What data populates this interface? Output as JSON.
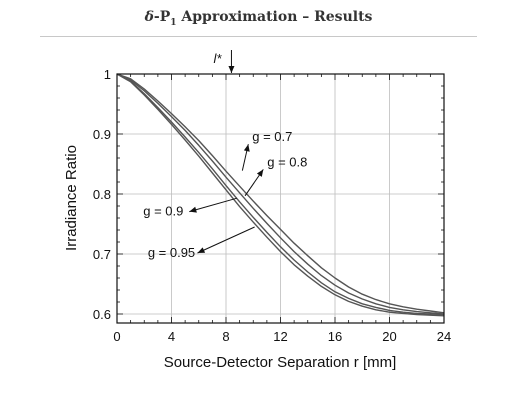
{
  "slide": {
    "title_symbol": "δ",
    "title_p": "-P",
    "title_sub": "1",
    "title_rest": " Approximation – Results"
  },
  "chart_data": {
    "type": "line",
    "title": "",
    "xlabel": "Source-Detector Separation r [mm]",
    "ylabel": "Irradiance Ratio",
    "xlim": [
      0,
      24
    ],
    "ylim": [
      0.585,
      1.0
    ],
    "x_ticks": [
      0,
      4,
      8,
      12,
      16,
      20,
      24
    ],
    "y_ticks": [
      0.6,
      0.7,
      0.8,
      0.9,
      1
    ],
    "x_tick_labels": [
      "0",
      "4",
      "8",
      "12",
      "16",
      "20",
      "24"
    ],
    "y_tick_labels": [
      "0.6",
      "0.7",
      "0.8",
      "0.9",
      "1"
    ],
    "grid": true,
    "marker": {
      "label": "l*",
      "x": 8.4
    },
    "series": [
      {
        "name": "g = 0.7",
        "x": [
          0,
          1,
          2,
          3,
          4,
          5,
          6,
          7,
          8,
          9,
          10,
          11,
          12,
          13,
          14,
          15,
          16,
          17,
          18,
          19,
          20,
          21,
          22,
          23,
          24
        ],
        "y": [
          1.0,
          0.992,
          0.975,
          0.955,
          0.934,
          0.912,
          0.889,
          0.864,
          0.838,
          0.813,
          0.788,
          0.764,
          0.741,
          0.718,
          0.697,
          0.677,
          0.66,
          0.645,
          0.633,
          0.624,
          0.617,
          0.612,
          0.608,
          0.605,
          0.602
        ]
      },
      {
        "name": "g = 0.8",
        "x": [
          0,
          1,
          2,
          3,
          4,
          5,
          6,
          7,
          8,
          9,
          10,
          11,
          12,
          13,
          14,
          15,
          16,
          17,
          18,
          19,
          20,
          21,
          22,
          23,
          24
        ],
        "y": [
          1.0,
          0.99,
          0.972,
          0.951,
          0.929,
          0.906,
          0.881,
          0.855,
          0.828,
          0.802,
          0.776,
          0.751,
          0.727,
          0.704,
          0.683,
          0.664,
          0.648,
          0.635,
          0.625,
          0.617,
          0.611,
          0.607,
          0.604,
          0.602,
          0.6
        ]
      },
      {
        "name": "g = 0.9",
        "x": [
          0,
          1,
          2,
          3,
          4,
          5,
          6,
          7,
          8,
          9,
          10,
          11,
          12,
          13,
          14,
          15,
          16,
          17,
          18,
          19,
          20,
          21,
          22,
          23,
          24
        ],
        "y": [
          1.0,
          0.988,
          0.967,
          0.944,
          0.92,
          0.895,
          0.869,
          0.842,
          0.814,
          0.787,
          0.761,
          0.736,
          0.712,
          0.69,
          0.67,
          0.652,
          0.637,
          0.626,
          0.617,
          0.611,
          0.606,
          0.603,
          0.601,
          0.6,
          0.599
        ]
      },
      {
        "name": "g = 0.95",
        "x": [
          0,
          1,
          2,
          3,
          4,
          5,
          6,
          7,
          8,
          9,
          10,
          11,
          12,
          13,
          14,
          15,
          16,
          17,
          18,
          19,
          20,
          21,
          22,
          23,
          24
        ],
        "y": [
          1.0,
          0.987,
          0.965,
          0.941,
          0.916,
          0.89,
          0.863,
          0.835,
          0.807,
          0.779,
          0.753,
          0.728,
          0.704,
          0.682,
          0.663,
          0.646,
          0.632,
          0.621,
          0.613,
          0.607,
          0.603,
          0.601,
          0.599,
          0.598,
          0.597
        ]
      }
    ],
    "annotations": [
      {
        "series": "g = 0.7",
        "label": "g = 0.7",
        "x": 9.2,
        "y": 0.839,
        "text_x": 11.4,
        "text_y": 0.888
      },
      {
        "series": "g = 0.8",
        "label": "g = 0.8",
        "x": 9.4,
        "y": 0.797,
        "text_x": 12.5,
        "text_y": 0.846
      },
      {
        "series": "g = 0.9",
        "label": "g = 0.9",
        "x": 8.8,
        "y": 0.793,
        "text_x": 3.4,
        "text_y": 0.764
      },
      {
        "series": "g = 0.95",
        "label": "g = 0.95",
        "x": 10.1,
        "y": 0.745,
        "text_x": 4.0,
        "text_y": 0.695
      }
    ]
  }
}
